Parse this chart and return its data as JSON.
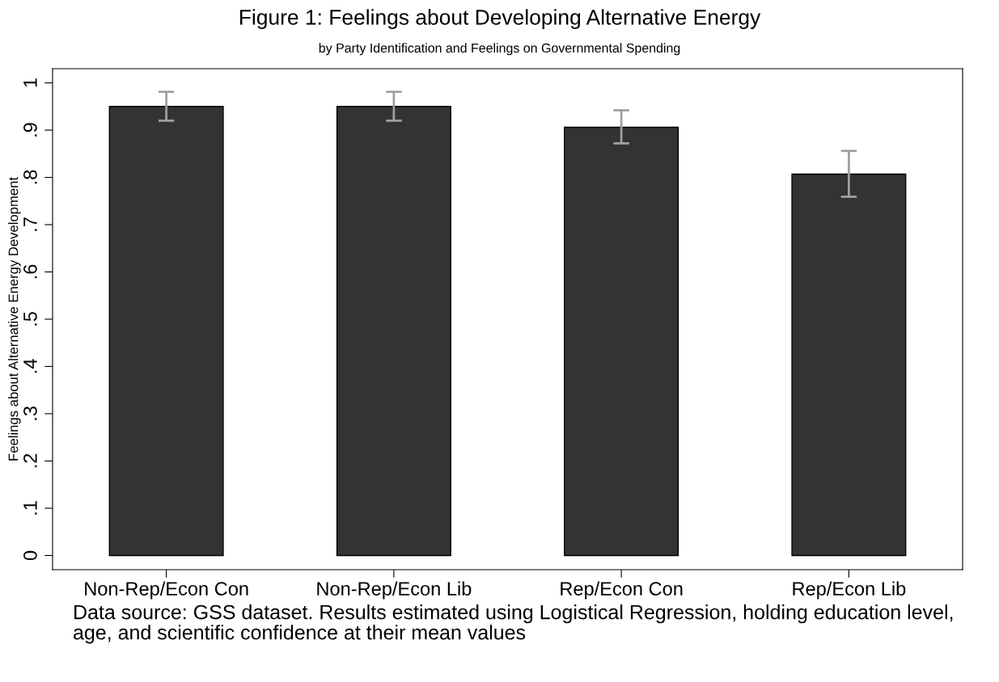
{
  "chart_data": {
    "type": "bar",
    "title": "Figure 1: Feelings about Developing Alternative Energy",
    "subtitle": "by Party Identification and Feelings on Governmental Spending",
    "ylabel": "Feelings about Alternative Energy Development",
    "categories": [
      "Non-Rep/Econ Con",
      "Non-Rep/Econ Lib",
      "Rep/Econ Con",
      "Rep/Econ Lib"
    ],
    "values": [
      0.95,
      0.95,
      0.906,
      0.807
    ],
    "errors": [
      [
        0.92,
        0.981
      ],
      [
        0.92,
        0.981
      ],
      [
        0.872,
        0.942
      ],
      [
        0.759,
        0.856
      ]
    ],
    "color": "#333333",
    "ylim": [
      -0.03,
      1.03
    ],
    "yticks": [
      0,
      {
        "value": 0.1,
        "label": ".1"
      },
      {
        "value": 0.2,
        "label": ".2"
      },
      {
        "value": 0.3,
        "label": ".3"
      },
      {
        "value": 0.4,
        "label": ".4"
      },
      {
        "value": 0.5,
        "label": ".5"
      },
      {
        "value": 0.6,
        "label": ".6"
      },
      {
        "value": 0.7,
        "label": ".7"
      },
      {
        "value": 0.8,
        "label": ".8"
      },
      {
        "value": 0.9,
        "label": ".9"
      },
      1
    ],
    "grid": false,
    "annotations": [
      "Data source: GSS dataset. Results estimated using Logistical Regression, holding education level, age, and scientific confidence at their mean values"
    ]
  }
}
